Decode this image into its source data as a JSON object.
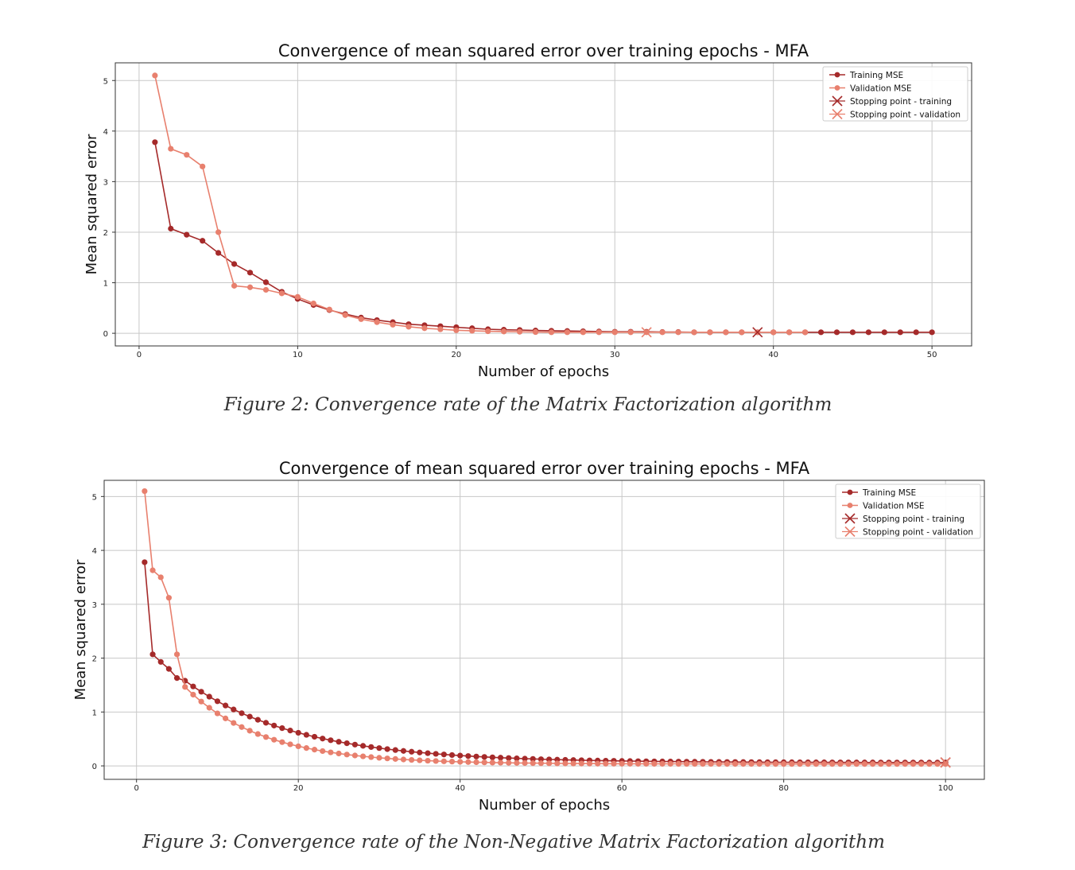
{
  "colors": {
    "training": "#a52a2a",
    "validation": "#e8806e",
    "grid": "#c8c8c8",
    "frame": "#333333"
  },
  "captions": {
    "fig2": "Figure 2: Convergence rate of the Matrix Factorization algorithm",
    "fig3": "Figure 3: Convergence rate of the Non-Negative Matrix Factorization algorithm"
  },
  "chart_data": [
    {
      "type": "line",
      "title": "Convergence of mean squared error over training epochs - MFA",
      "xlabel": "Number of epochs",
      "ylabel": "Mean squared error",
      "xlim": [
        -1.5,
        52.5
      ],
      "ylim": [
        -0.25,
        5.35
      ],
      "xticks": [
        0,
        10,
        20,
        30,
        40,
        50
      ],
      "yticks": [
        0,
        1,
        2,
        3,
        4,
        5
      ],
      "grid": true,
      "legend_position": "top-right",
      "legend": [
        "Training MSE",
        "Validation MSE",
        "Stopping point - training",
        "Stopping point - validation"
      ],
      "series": [
        {
          "name": "Training MSE",
          "x": [
            1,
            2,
            3,
            4,
            5,
            6,
            7,
            8,
            9,
            10,
            11,
            12,
            13,
            14,
            15,
            16,
            17,
            18,
            19,
            20,
            21,
            22,
            23,
            24,
            25,
            26,
            27,
            28,
            29,
            30,
            31,
            32,
            33,
            34,
            35,
            36,
            37,
            38,
            39,
            40,
            41,
            42,
            43,
            44,
            45,
            46,
            47,
            48,
            49,
            50
          ],
          "y": [
            3.78,
            2.07,
            1.95,
            1.83,
            1.59,
            1.37,
            1.2,
            1.01,
            0.82,
            0.68,
            0.56,
            0.46,
            0.38,
            0.31,
            0.26,
            0.22,
            0.18,
            0.16,
            0.14,
            0.12,
            0.1,
            0.08,
            0.07,
            0.065,
            0.055,
            0.05,
            0.045,
            0.04,
            0.035,
            0.03,
            0.03,
            0.03,
            0.025,
            0.025,
            0.02,
            0.02,
            0.02,
            0.02,
            0.02,
            0.02,
            0.02,
            0.02,
            0.02,
            0.02,
            0.02,
            0.02,
            0.02,
            0.02,
            0.02,
            0.02
          ]
        },
        {
          "name": "Validation MSE",
          "x": [
            1,
            2,
            3,
            4,
            5,
            6,
            7,
            8,
            9,
            10,
            11,
            12,
            13,
            14,
            15,
            16,
            17,
            18,
            19,
            20,
            21,
            22,
            23,
            24,
            25,
            26,
            27,
            28,
            29,
            30,
            31,
            32,
            33,
            34,
            35,
            36,
            37,
            38,
            39,
            40,
            41,
            42
          ],
          "y": [
            5.1,
            3.65,
            3.53,
            3.3,
            2.0,
            0.94,
            0.91,
            0.86,
            0.79,
            0.72,
            0.59,
            0.47,
            0.36,
            0.28,
            0.22,
            0.17,
            0.13,
            0.1,
            0.08,
            0.06,
            0.05,
            0.04,
            0.035,
            0.03,
            0.025,
            0.02,
            0.02,
            0.02,
            0.02,
            0.02,
            0.02,
            0.02,
            0.02,
            0.02,
            0.02,
            0.02,
            0.02,
            0.02,
            0.02,
            0.02,
            0.02,
            0.02
          ]
        },
        {
          "name": "Stopping point - training",
          "x": [
            39
          ],
          "y": [
            0.02
          ]
        },
        {
          "name": "Stopping point - validation",
          "x": [
            32
          ],
          "y": [
            0.02
          ]
        }
      ]
    },
    {
      "type": "line",
      "title": "Convergence of mean squared error over training epochs - MFA",
      "xlabel": "Number of epochs",
      "ylabel": "Mean squared error",
      "xlim": [
        -4,
        104.8
      ],
      "ylim": [
        -0.25,
        5.3
      ],
      "xticks": [
        0,
        20,
        40,
        60,
        80,
        100
      ],
      "yticks": [
        0,
        1,
        2,
        3,
        4,
        5
      ],
      "grid": true,
      "legend_position": "top-right",
      "legend": [
        "Training MSE",
        "Validation MSE",
        "Stopping point - training",
        "Stopping point - validation"
      ],
      "curve": {
        "training": {
          "first": [
            3.78,
            2.07,
            1.93,
            1.8,
            1.63
          ],
          "decay": {
            "start": 6,
            "a": 1.52,
            "k": 0.072,
            "floor": 0.06
          }
        },
        "validation": {
          "first": [
            5.1,
            3.63,
            3.5,
            3.12,
            2.07
          ],
          "decay": {
            "start": 6,
            "a": 1.43,
            "k": 0.105,
            "floor": 0.035
          }
        }
      },
      "stops": {
        "training": [
          100,
          0.065
        ],
        "validation": [
          100,
          0.06
        ]
      }
    }
  ]
}
